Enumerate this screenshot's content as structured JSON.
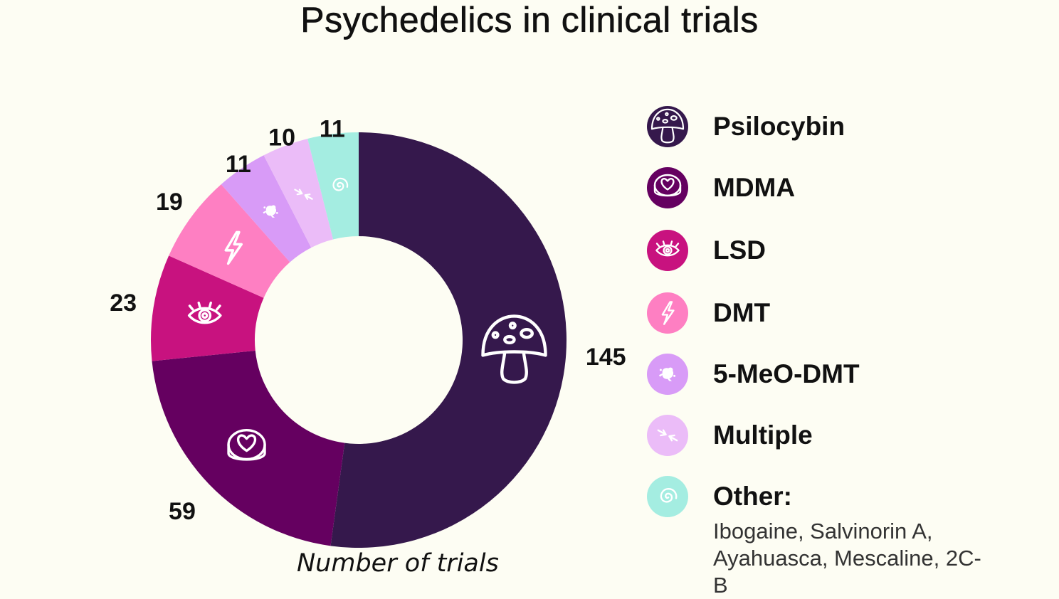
{
  "title": "Psychedelics in clinical trials",
  "axis_note": "Number of trials",
  "legend": {
    "other_label": "Other:",
    "other_note": "Ibogaine, Salvinorin A, Ayahuasca, Mescaline, 2C-B"
  },
  "chart_data": {
    "type": "pie",
    "variant": "donut",
    "title": "Psychedelics in clinical trials",
    "value_label": "Number of trials",
    "categories": [
      "Psilocybin",
      "MDMA",
      "LSD",
      "DMT",
      "5-MeO-DMT",
      "Multiple",
      "Other"
    ],
    "values": [
      145,
      59,
      23,
      19,
      11,
      10,
      11
    ],
    "colors": [
      "#35184c",
      "#650060",
      "#c8127f",
      "#fe7fc2",
      "#d89bf7",
      "#ebbcf8",
      "#a4ede1"
    ],
    "icons": [
      "mushroom-icon",
      "heart-pill-icon",
      "eye-icon",
      "lightning-icon",
      "frog-icon",
      "arrows-icon",
      "spiral-icon"
    ],
    "legend_position": "right",
    "direction": "clockwise-from-top"
  }
}
